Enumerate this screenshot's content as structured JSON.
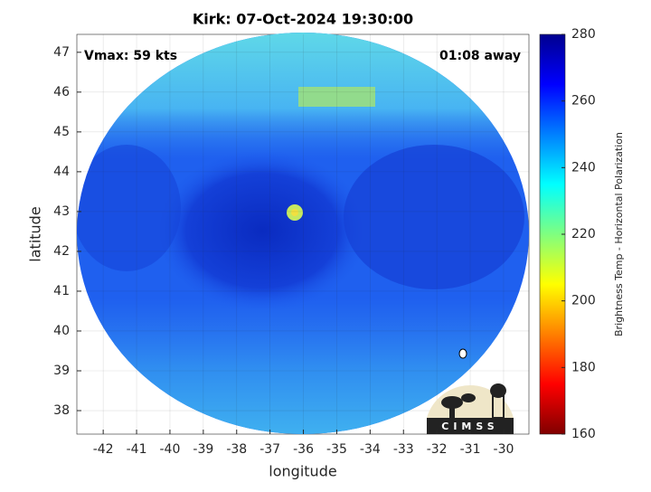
{
  "chart_data": {
    "type": "swath-image",
    "title": "Kirk: 07-Oct-2024 19:30:00",
    "x_label": "longitude",
    "y_label": "latitude",
    "xlim": [
      -42.79,
      -29.24
    ],
    "xticks": [
      -42,
      -41,
      -40,
      -39,
      -38,
      -37,
      -36,
      -35,
      -34,
      -33,
      -32,
      -31,
      -30
    ],
    "ylim": [
      37.41,
      47.45
    ],
    "yticks": [
      38,
      39,
      40,
      41,
      42,
      43,
      44,
      45,
      46,
      47
    ],
    "grid": true,
    "annotations": [
      "Vmax: 59 kts",
      "01:08 away"
    ],
    "colorbar": {
      "label": "Brightness Temp - Horizontal Polarization",
      "colormap": "jet",
      "reversed": true,
      "lim": [
        160,
        280
      ],
      "ticks": [
        160,
        180,
        200,
        220,
        240,
        260,
        280
      ]
    },
    "logo": "CIMSS"
  }
}
